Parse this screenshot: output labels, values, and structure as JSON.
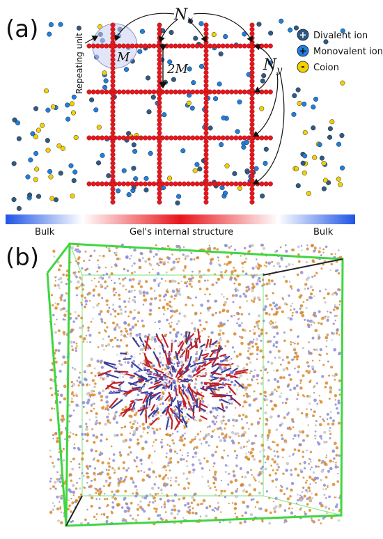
{
  "panel_a": {
    "label": "(a)",
    "repeating_unit_label": "Repeating unit",
    "symbol_M": "M",
    "symbol_2M": "2M",
    "symbol_Nx": "N",
    "symbol_Nx_sub": "x",
    "symbol_Ny": "N",
    "symbol_Ny_sub": "y",
    "legend": [
      {
        "name": "Divalent ion",
        "sign": "+",
        "color": "#2f5a86"
      },
      {
        "name": "Monovalent ion",
        "sign": "+",
        "color": "#1f7fe0"
      },
      {
        "name": "Coion",
        "sign": "-",
        "color": "#f3d100"
      }
    ],
    "gradient_bar": {
      "left_label": "Bulk",
      "center_label": "Gel's internal structure",
      "right_label": "Bulk",
      "edge_color": "#1f55e6",
      "center_color": "#e8141b"
    },
    "network_color": "#e4181f"
  },
  "panel_b": {
    "label": "(b)",
    "box_color": "#3fd640",
    "particle_colors": [
      "#d98a2b",
      "#8c8cd6",
      "#c4c4c4"
    ]
  }
}
